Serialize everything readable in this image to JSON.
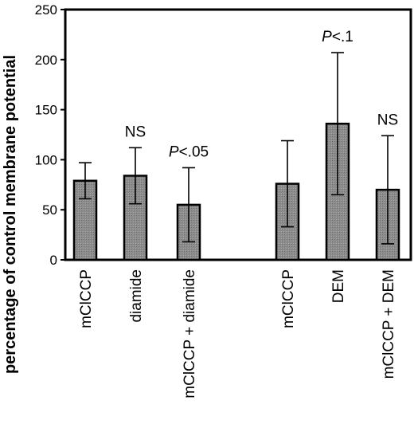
{
  "chart_data": {
    "type": "bar",
    "ylabel": "percentage of control membrane potential",
    "xlabel": "",
    "ylim": [
      0,
      250
    ],
    "yticks": [
      0,
      50,
      100,
      150,
      200,
      250
    ],
    "grid": false,
    "categories": [
      "mClCCP",
      "diamide",
      "mClCCP + diamide",
      "mClCCP",
      "DEM",
      "mClCCP + DEM"
    ],
    "groups": [
      [
        0,
        1,
        2
      ],
      [
        3,
        4,
        5
      ]
    ],
    "values": [
      79,
      84,
      55,
      76,
      136,
      70
    ],
    "errors": [
      18,
      28,
      37,
      43,
      71,
      54
    ],
    "annotations": [
      "",
      "NS",
      "P<.05",
      "",
      "P<.1",
      "NS"
    ],
    "bar_color": "#8c8c8c"
  }
}
